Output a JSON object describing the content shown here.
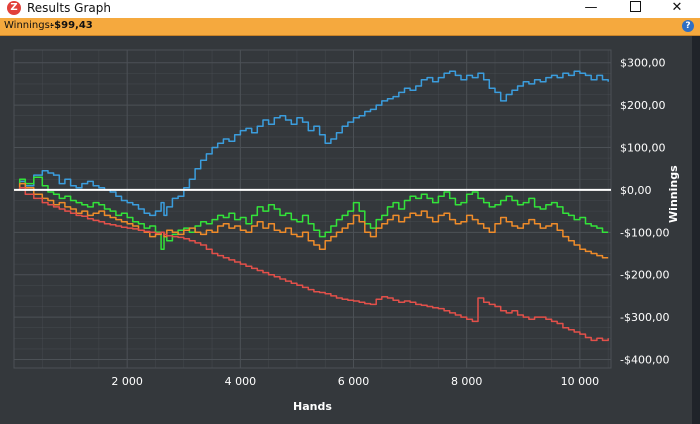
{
  "window": {
    "title": "Results Graph",
    "app_icon_letter": "Z",
    "minimize_glyph": "—",
    "close_glyph": "✕"
  },
  "status": {
    "winnings_label": "Winnings:",
    "winnings_value": "-$99,43",
    "help_glyph": "?"
  },
  "colors": {
    "background": "#34383c",
    "grid": "#4c5156",
    "zero_line": "#ffffff",
    "blue": "#3b9ddd",
    "green": "#33e33a",
    "orange": "#ef8c2a",
    "red": "#e2504a"
  },
  "chart_data": {
    "type": "line",
    "xlabel": "Hands",
    "ylabel": "Winnings",
    "xlim": [
      0,
      10550
    ],
    "ylim": [
      -420,
      330
    ],
    "x_ticks": [
      2000,
      4000,
      6000,
      8000,
      10000
    ],
    "x_tick_labels": [
      "2 000",
      "4 000",
      "6 000",
      "8 000",
      "10 000"
    ],
    "y_ticks": [
      300,
      200,
      100,
      0,
      -100,
      -200,
      -300,
      -400
    ],
    "y_tick_labels": [
      "$300,00",
      "$200,00",
      "$100,00",
      "$0,00",
      "-$100,00",
      "-$200,00",
      "-$300,00",
      "-$400,00"
    ],
    "grid": true,
    "series": [
      {
        "key": "blue",
        "x": [
          0,
          100,
          200,
          350,
          500,
          600,
          700,
          800,
          900,
          1000,
          1100,
          1200,
          1300,
          1400,
          1500,
          1600,
          1700,
          1800,
          1900,
          2000,
          2100,
          2200,
          2300,
          2400,
          2500,
          2600,
          2650,
          2700,
          2800,
          2900,
          3000,
          3100,
          3200,
          3300,
          3400,
          3500,
          3600,
          3700,
          3800,
          3900,
          4000,
          4100,
          4200,
          4300,
          4400,
          4500,
          4600,
          4700,
          4800,
          4900,
          5000,
          5100,
          5200,
          5300,
          5400,
          5500,
          5600,
          5700,
          5800,
          5900,
          6000,
          6100,
          6200,
          6300,
          6400,
          6500,
          6600,
          6700,
          6800,
          6900,
          7000,
          7100,
          7200,
          7300,
          7400,
          7500,
          7600,
          7700,
          7800,
          7900,
          8000,
          8100,
          8200,
          8300,
          8400,
          8500,
          8600,
          8700,
          8800,
          8900,
          9000,
          9100,
          9200,
          9300,
          9400,
          9500,
          9600,
          9700,
          9800,
          9900,
          10000,
          10100,
          10200,
          10300,
          10400,
          10500
        ],
        "y": [
          0,
          20,
          10,
          35,
          45,
          40,
          35,
          15,
          25,
          10,
          5,
          15,
          20,
          10,
          5,
          0,
          -5,
          -15,
          -25,
          -30,
          -35,
          -45,
          -55,
          -60,
          -50,
          -30,
          -60,
          -40,
          -20,
          -15,
          5,
          25,
          50,
          70,
          85,
          100,
          110,
          120,
          115,
          130,
          140,
          145,
          135,
          150,
          165,
          155,
          170,
          175,
          165,
          155,
          170,
          160,
          140,
          150,
          130,
          110,
          120,
          135,
          150,
          160,
          170,
          175,
          185,
          190,
          200,
          210,
          215,
          220,
          230,
          240,
          235,
          245,
          260,
          265,
          255,
          265,
          275,
          280,
          270,
          260,
          270,
          265,
          275,
          260,
          240,
          230,
          210,
          225,
          235,
          245,
          255,
          250,
          260,
          255,
          265,
          270,
          265,
          275,
          270,
          280,
          275,
          270,
          260,
          270,
          260,
          255
        ]
      },
      {
        "key": "green",
        "x": [
          0,
          100,
          200,
          350,
          500,
          600,
          700,
          800,
          900,
          1000,
          1100,
          1200,
          1300,
          1400,
          1500,
          1600,
          1700,
          1800,
          1900,
          2000,
          2100,
          2200,
          2300,
          2400,
          2500,
          2600,
          2650,
          2700,
          2800,
          2900,
          3000,
          3100,
          3200,
          3300,
          3400,
          3500,
          3600,
          3700,
          3800,
          3900,
          4000,
          4100,
          4200,
          4300,
          4400,
          4500,
          4600,
          4700,
          4800,
          4900,
          5000,
          5100,
          5200,
          5300,
          5400,
          5500,
          5600,
          5700,
          5800,
          5900,
          6000,
          6100,
          6200,
          6300,
          6400,
          6500,
          6600,
          6700,
          6800,
          6900,
          7000,
          7100,
          7200,
          7300,
          7400,
          7500,
          7600,
          7700,
          7800,
          7900,
          8000,
          8100,
          8200,
          8300,
          8400,
          8500,
          8600,
          8700,
          8800,
          8900,
          9000,
          9100,
          9200,
          9300,
          9400,
          9500,
          9600,
          9700,
          9800,
          9900,
          10000,
          10100,
          10200,
          10300,
          10400,
          10500
        ],
        "y": [
          0,
          25,
          15,
          30,
          10,
          -5,
          -10,
          -20,
          -15,
          -25,
          -30,
          -35,
          -40,
          -30,
          -35,
          -45,
          -50,
          -60,
          -55,
          -65,
          -75,
          -80,
          -90,
          -85,
          -100,
          -140,
          -110,
          -120,
          -105,
          -95,
          -90,
          -100,
          -85,
          -75,
          -80,
          -70,
          -60,
          -65,
          -55,
          -70,
          -65,
          -80,
          -60,
          -40,
          -50,
          -35,
          -45,
          -60,
          -55,
          -70,
          -75,
          -60,
          -80,
          -95,
          -110,
          -100,
          -85,
          -70,
          -60,
          -50,
          -30,
          -50,
          -80,
          -90,
          -70,
          -60,
          -40,
          -30,
          -45,
          -25,
          -15,
          -20,
          -10,
          -20,
          -30,
          -15,
          -5,
          -20,
          -35,
          -30,
          -10,
          -5,
          -20,
          -30,
          -40,
          -35,
          -25,
          -15,
          -25,
          -35,
          -30,
          -20,
          -40,
          -45,
          -35,
          -30,
          -40,
          -55,
          -60,
          -70,
          -65,
          -80,
          -85,
          -90,
          -100,
          -100
        ]
      },
      {
        "key": "orange",
        "x": [
          0,
          100,
          200,
          350,
          500,
          600,
          700,
          800,
          900,
          1000,
          1100,
          1200,
          1300,
          1400,
          1500,
          1600,
          1700,
          1800,
          1900,
          2000,
          2100,
          2200,
          2300,
          2400,
          2500,
          2600,
          2650,
          2700,
          2800,
          2900,
          3000,
          3100,
          3200,
          3300,
          3400,
          3500,
          3600,
          3700,
          3800,
          3900,
          4000,
          4100,
          4200,
          4300,
          4400,
          4500,
          4600,
          4700,
          4800,
          4900,
          5000,
          5100,
          5200,
          5300,
          5400,
          5500,
          5600,
          5700,
          5800,
          5900,
          6000,
          6100,
          6200,
          6300,
          6400,
          6500,
          6600,
          6700,
          6800,
          6900,
          7000,
          7100,
          7200,
          7300,
          7400,
          7500,
          7600,
          7700,
          7800,
          7900,
          8000,
          8100,
          8200,
          8300,
          8400,
          8500,
          8600,
          8700,
          8800,
          8900,
          9000,
          9100,
          9200,
          9300,
          9400,
          9500,
          9600,
          9700,
          9800,
          9900,
          10000,
          10100,
          10200,
          10300,
          10400,
          10500
        ],
        "y": [
          0,
          15,
          5,
          -10,
          -20,
          -25,
          -35,
          -30,
          -40,
          -45,
          -55,
          -50,
          -60,
          -55,
          -50,
          -60,
          -65,
          -70,
          -75,
          -80,
          -85,
          -95,
          -100,
          -110,
          -105,
          -100,
          -110,
          -95,
          -100,
          -105,
          -95,
          -90,
          -100,
          -105,
          -95,
          -100,
          -85,
          -80,
          -90,
          -85,
          -95,
          -100,
          -85,
          -75,
          -90,
          -80,
          -95,
          -100,
          -90,
          -105,
          -110,
          -100,
          -120,
          -130,
          -140,
          -120,
          -110,
          -100,
          -90,
          -80,
          -60,
          -75,
          -100,
          -110,
          -90,
          -80,
          -70,
          -60,
          -75,
          -65,
          -55,
          -60,
          -50,
          -65,
          -75,
          -60,
          -55,
          -70,
          -80,
          -75,
          -60,
          -70,
          -80,
          -90,
          -100,
          -80,
          -65,
          -75,
          -85,
          -90,
          -80,
          -70,
          -80,
          -90,
          -85,
          -80,
          -95,
          -110,
          -120,
          -130,
          -140,
          -145,
          -150,
          -155,
          -160,
          -160
        ]
      },
      {
        "key": "red",
        "x": [
          0,
          100,
          200,
          350,
          500,
          600,
          700,
          800,
          900,
          1000,
          1100,
          1200,
          1300,
          1400,
          1500,
          1600,
          1700,
          1800,
          1900,
          2000,
          2100,
          2200,
          2300,
          2400,
          2500,
          2600,
          2650,
          2700,
          2800,
          2900,
          3000,
          3100,
          3200,
          3300,
          3400,
          3500,
          3600,
          3700,
          3800,
          3900,
          4000,
          4100,
          4200,
          4300,
          4400,
          4500,
          4600,
          4700,
          4800,
          4900,
          5000,
          5100,
          5200,
          5300,
          5400,
          5500,
          5600,
          5700,
          5800,
          5900,
          6000,
          6100,
          6200,
          6300,
          6400,
          6500,
          6600,
          6700,
          6800,
          6900,
          7000,
          7100,
          7200,
          7300,
          7400,
          7500,
          7600,
          7700,
          7800,
          7900,
          8000,
          8100,
          8200,
          8300,
          8400,
          8500,
          8600,
          8700,
          8800,
          8900,
          9000,
          9100,
          9200,
          9300,
          9400,
          9500,
          9600,
          9700,
          9800,
          9900,
          10000,
          10100,
          10200,
          10300,
          10400,
          10500
        ],
        "y": [
          0,
          5,
          -10,
          -20,
          -30,
          -35,
          -40,
          -45,
          -50,
          -55,
          -60,
          -62,
          -68,
          -72,
          -75,
          -80,
          -82,
          -85,
          -88,
          -90,
          -92,
          -95,
          -98,
          -100,
          -102,
          -100,
          -105,
          -108,
          -110,
          -112,
          -115,
          -120,
          -125,
          -130,
          -140,
          -150,
          -155,
          -160,
          -165,
          -170,
          -175,
          -180,
          -185,
          -190,
          -195,
          -200,
          -205,
          -210,
          -215,
          -220,
          -225,
          -230,
          -235,
          -240,
          -242,
          -245,
          -250,
          -255,
          -258,
          -260,
          -262,
          -265,
          -268,
          -270,
          -258,
          -252,
          -255,
          -260,
          -265,
          -262,
          -265,
          -270,
          -272,
          -275,
          -278,
          -280,
          -285,
          -290,
          -295,
          -300,
          -305,
          -310,
          -255,
          -265,
          -270,
          -275,
          -285,
          -290,
          -285,
          -295,
          -300,
          -305,
          -300,
          -300,
          -305,
          -310,
          -315,
          -325,
          -330,
          -335,
          -340,
          -348,
          -355,
          -350,
          -355,
          -350
        ]
      }
    ]
  }
}
